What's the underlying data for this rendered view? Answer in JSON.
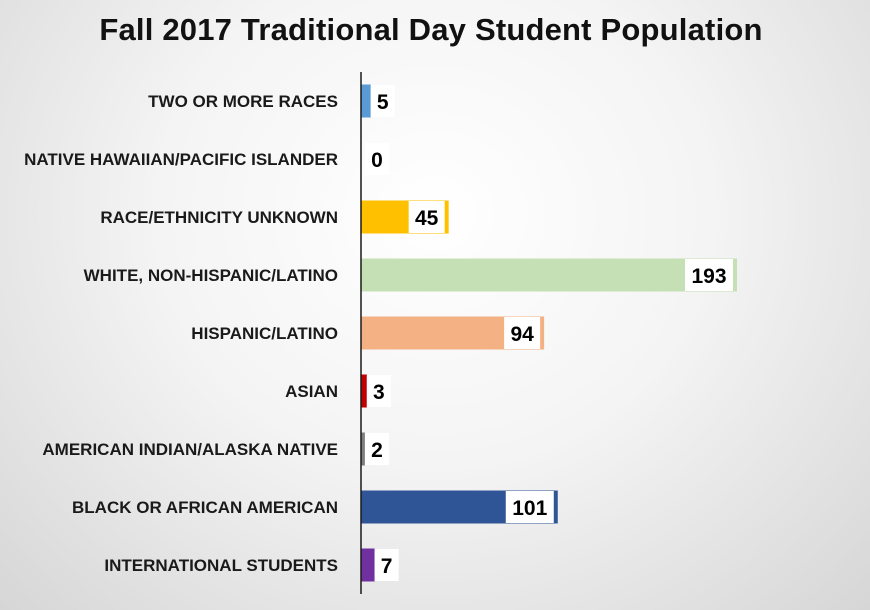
{
  "chart_data": {
    "type": "bar",
    "orientation": "horizontal",
    "title": "Fall 2017 Traditional Day Student Population",
    "xlabel": "",
    "ylabel": "",
    "xlim": [
      0,
      200
    ],
    "grid": false,
    "legend": "none",
    "categories": [
      "TWO OR MORE RACES",
      "NATIVE HAWAIIAN/PACIFIC ISLANDER",
      "RACE/ETHNICITY UNKNOWN",
      "WHITE, NON-HISPANIC/LATINO",
      "HISPANIC/LATINO",
      "ASIAN",
      "AMERICAN INDIAN/ALASKA NATIVE",
      "BLACK OR AFRICAN AMERICAN",
      "INTERNATIONAL STUDENTS"
    ],
    "values": [
      5,
      0,
      45,
      193,
      94,
      3,
      2,
      101,
      7
    ],
    "colors": [
      "#5b9bd5",
      "#2e75b6",
      "#ffc000",
      "#c5e0b4",
      "#f4b183",
      "#c00000",
      "#7f7f7f",
      "#2f5597",
      "#7030a0"
    ]
  }
}
